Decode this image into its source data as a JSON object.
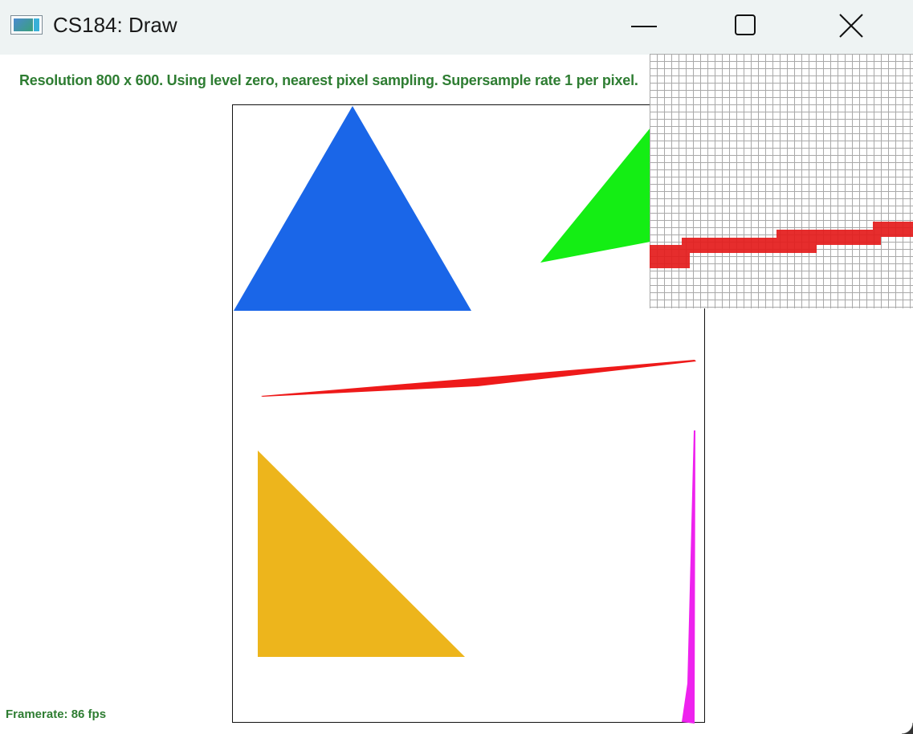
{
  "window": {
    "title": "CS184: Draw",
    "icon": "app-window-icon",
    "controls": {
      "minimize": "minimize-icon",
      "maximize": "maximize-icon",
      "close": "close-icon"
    }
  },
  "status": {
    "text": "Resolution 800 x 600. Using level zero, nearest pixel sampling. Supersample rate 1 per pixel.",
    "color": "#2e7d32"
  },
  "framerate": {
    "text": "Framerate: 86 fps"
  },
  "shapes": {
    "blue_triangle": "#1a66e8",
    "green_triangle": "#14ee14",
    "red_sliver": "#ee1a1a",
    "yellow_triangle": "#edb51c",
    "magenta_sliver": "#ee22ee"
  },
  "zoom": {
    "grid_color": "#a9a9a9",
    "fill_color": "#e41c1c"
  }
}
